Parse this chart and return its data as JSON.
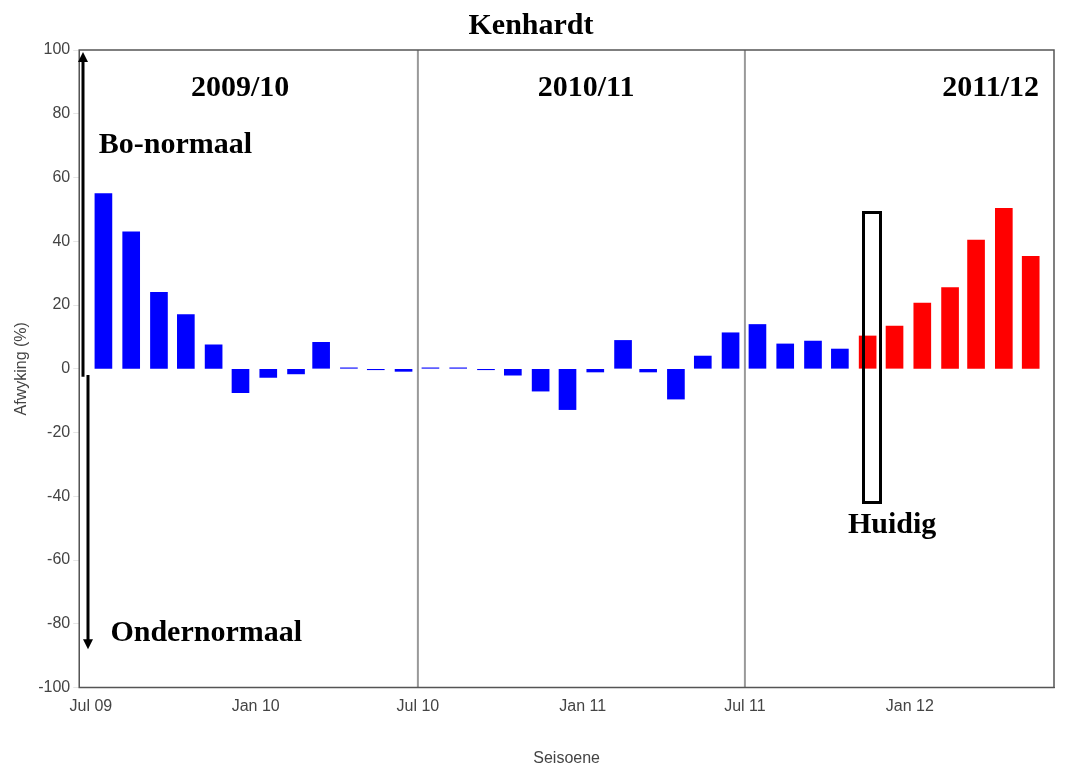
{
  "chart_data": {
    "type": "bar",
    "title": "Kenhardt",
    "xlabel": "Seisoene",
    "ylabel": "Afwyking (%)",
    "x": [
      "2009-07-15",
      "2009-08-15",
      "2009-09-15",
      "2009-10-15",
      "2009-11-15",
      "2009-12-15",
      "2010-01-15",
      "2010-02-15",
      "2010-03-15",
      "2010-04-15",
      "2010-05-15",
      "2010-06-15",
      "2010-07-15",
      "2010-08-15",
      "2010-09-15",
      "2010-10-15",
      "2010-11-15",
      "2010-12-15",
      "2011-01-15",
      "2011-02-15",
      "2011-03-15",
      "2011-04-15",
      "2011-05-15",
      "2011-06-15",
      "2011-07-15",
      "2011-08-15",
      "2011-09-15",
      "2011-10-15",
      "2011-11-15",
      "2011-12-15",
      "2012-01-15",
      "2012-02-15",
      "2012-03-15",
      "2012-04-15",
      "2012-05-15"
    ],
    "values": [
      55,
      43,
      24,
      17,
      7.5,
      -7.5,
      -2.7,
      -1.6,
      8.3,
      0.3,
      -0.3,
      -0.8,
      0.3,
      0.3,
      -0.3,
      -2,
      -7,
      -12.8,
      -1,
      8.9,
      -1,
      -9.5,
      4,
      11.3,
      13.9,
      7.8,
      8.7,
      6.2,
      10.3,
      13.4,
      20.6,
      25.5,
      40.4,
      50.3,
      35.3
    ],
    "colors": [
      "#0000ff",
      "#0000ff",
      "#0000ff",
      "#0000ff",
      "#0000ff",
      "#0000ff",
      "#0000ff",
      "#0000ff",
      "#0000ff",
      "#0000ff",
      "#0000ff",
      "#0000ff",
      "#0000ff",
      "#0000ff",
      "#0000ff",
      "#0000ff",
      "#0000ff",
      "#0000ff",
      "#0000ff",
      "#0000ff",
      "#0000ff",
      "#0000ff",
      "#0000ff",
      "#0000ff",
      "#0000ff",
      "#0000ff",
      "#0000ff",
      "#0000ff",
      "#ff0000",
      "#ff0000",
      "#ff0000",
      "#ff0000",
      "#ff0000",
      "#ff0000",
      "#ff0000"
    ],
    "xlim": [
      "2009-06-18",
      "2012-06-10"
    ],
    "xticks": [
      {
        "value": "2009-07-01",
        "label": "Jul 09"
      },
      {
        "value": "2010-01-01",
        "label": "Jan 10"
      },
      {
        "value": "2010-07-01",
        "label": "Jul 10"
      },
      {
        "value": "2011-01-01",
        "label": "Jan 11"
      },
      {
        "value": "2011-07-01",
        "label": "Jul 11"
      },
      {
        "value": "2012-01-01",
        "label": "Jan 12"
      }
    ],
    "ylim": [
      -100,
      100
    ],
    "yticks": [
      -100,
      -80,
      -60,
      -40,
      -20,
      0,
      20,
      40,
      60,
      80,
      100
    ],
    "ref_lines": [
      {
        "axis": "x",
        "value": "2010-07-01",
        "color": "#999999"
      },
      {
        "axis": "x",
        "value": "2011-07-01",
        "color": "#999999"
      }
    ],
    "annotations": [
      "2009/10",
      "2010/11",
      "2011/12",
      "Bo-normaal",
      "Ondernormaal",
      "Huidig"
    ],
    "grid": false,
    "legend": false
  }
}
